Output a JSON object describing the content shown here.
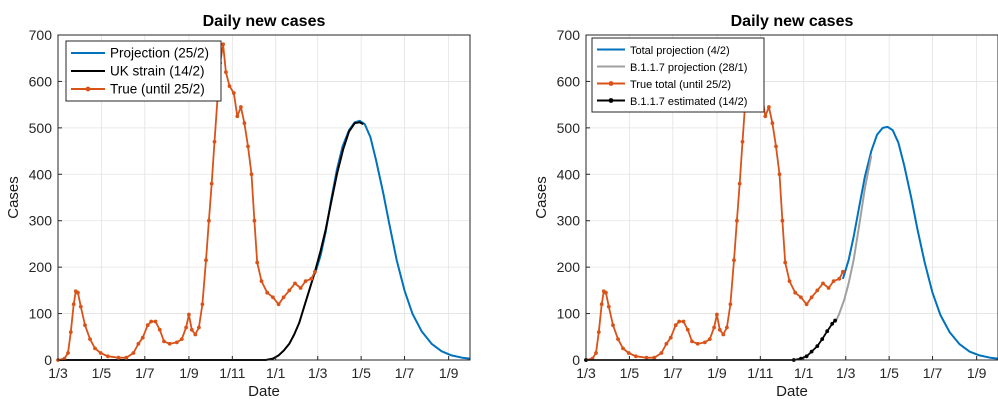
{
  "chart_data": [
    {
      "type": "line",
      "title": "Daily new cases",
      "xlabel": "Date",
      "ylabel": "Cases",
      "ylim": [
        0,
        700
      ],
      "yticks": [
        0,
        100,
        200,
        300,
        400,
        500,
        600,
        700
      ],
      "xlim": [
        "2020-03-01",
        "2021-10-01"
      ],
      "xtick_dates": [
        "2020-03-01",
        "2020-05-01",
        "2020-07-01",
        "2020-09-01",
        "2020-11-01",
        "2021-01-01",
        "2021-03-01",
        "2021-05-01",
        "2021-07-01",
        "2021-09-01"
      ],
      "xtick_labels": [
        "1/3",
        "1/5",
        "1/7",
        "1/9",
        "1/11",
        "1/1",
        "1/3",
        "1/5",
        "1/7",
        "1/9"
      ],
      "grid": true,
      "legend_position": "top-left",
      "series": [
        {
          "name": "Projection (25/2)",
          "color": "#0072BD",
          "markers": false,
          "points": [
            [
              "2021-02-25",
              185
            ],
            [
              "2021-03-05",
              225
            ],
            [
              "2021-03-12",
              275
            ],
            [
              "2021-03-20",
              345
            ],
            [
              "2021-03-28",
              410
            ],
            [
              "2021-04-05",
              460
            ],
            [
              "2021-04-14",
              495
            ],
            [
              "2021-04-22",
              512
            ],
            [
              "2021-04-29",
              515
            ],
            [
              "2021-05-06",
              508
            ],
            [
              "2021-05-14",
              480
            ],
            [
              "2021-05-22",
              430
            ],
            [
              "2021-06-01",
              360
            ],
            [
              "2021-06-10",
              290
            ],
            [
              "2021-06-20",
              215
            ],
            [
              "2021-07-01",
              150
            ],
            [
              "2021-07-12",
              100
            ],
            [
              "2021-07-25",
              62
            ],
            [
              "2021-08-08",
              35
            ],
            [
              "2021-08-22",
              19
            ],
            [
              "2021-09-05",
              10
            ],
            [
              "2021-09-20",
              5
            ],
            [
              "2021-10-01",
              3
            ]
          ]
        },
        {
          "name": "UK strain (14/2)",
          "color": "#000000",
          "markers": false,
          "points": [
            [
              "2020-03-01",
              0
            ],
            [
              "2020-12-18",
              0
            ],
            [
              "2020-12-28",
              3
            ],
            [
              "2021-01-05",
              10
            ],
            [
              "2021-01-12",
              20
            ],
            [
              "2021-01-20",
              35
            ],
            [
              "2021-01-27",
              55
            ],
            [
              "2021-02-03",
              80
            ],
            [
              "2021-02-10",
              115
            ],
            [
              "2021-02-17",
              150
            ],
            [
              "2021-02-25",
              190
            ],
            [
              "2021-03-05",
              235
            ],
            [
              "2021-03-12",
              280
            ],
            [
              "2021-03-20",
              340
            ],
            [
              "2021-03-28",
              400
            ],
            [
              "2021-04-06",
              455
            ],
            [
              "2021-04-14",
              492
            ],
            [
              "2021-04-22",
              510
            ],
            [
              "2021-04-29",
              512
            ],
            [
              "2021-05-04",
              508
            ]
          ]
        },
        {
          "name": "True (until 25/2)",
          "color": "#D95319",
          "markers": true,
          "points": [
            [
              "2020-03-01",
              0
            ],
            [
              "2020-03-10",
              3
            ],
            [
              "2020-03-15",
              15
            ],
            [
              "2020-03-19",
              60
            ],
            [
              "2020-03-23",
              120
            ],
            [
              "2020-03-26",
              148
            ],
            [
              "2020-03-29",
              145
            ],
            [
              "2020-04-02",
              115
            ],
            [
              "2020-04-08",
              75
            ],
            [
              "2020-04-15",
              45
            ],
            [
              "2020-04-22",
              25
            ],
            [
              "2020-04-30",
              15
            ],
            [
              "2020-05-10",
              8
            ],
            [
              "2020-05-25",
              5
            ],
            [
              "2020-06-05",
              5
            ],
            [
              "2020-06-15",
              15
            ],
            [
              "2020-06-22",
              35
            ],
            [
              "2020-06-28",
              48
            ],
            [
              "2020-07-05",
              75
            ],
            [
              "2020-07-10",
              83
            ],
            [
              "2020-07-16",
              83
            ],
            [
              "2020-07-22",
              65
            ],
            [
              "2020-07-28",
              40
            ],
            [
              "2020-08-05",
              35
            ],
            [
              "2020-08-15",
              38
            ],
            [
              "2020-08-22",
              45
            ],
            [
              "2020-08-28",
              70
            ],
            [
              "2020-09-01",
              98
            ],
            [
              "2020-09-05",
              65
            ],
            [
              "2020-09-10",
              55
            ],
            [
              "2020-09-15",
              70
            ],
            [
              "2020-09-20",
              120
            ],
            [
              "2020-09-25",
              215
            ],
            [
              "2020-09-29",
              300
            ],
            [
              "2020-10-03",
              380
            ],
            [
              "2020-10-07",
              470
            ],
            [
              "2020-10-11",
              560
            ],
            [
              "2020-10-15",
              640
            ],
            [
              "2020-10-19",
              680
            ],
            [
              "2020-10-23",
              620
            ],
            [
              "2020-10-28",
              590
            ],
            [
              "2020-11-03",
              575
            ],
            [
              "2020-11-08",
              525
            ],
            [
              "2020-11-13",
              545
            ],
            [
              "2020-11-18",
              510
            ],
            [
              "2020-11-23",
              460
            ],
            [
              "2020-11-28",
              400
            ],
            [
              "2020-12-02",
              300
            ],
            [
              "2020-12-06",
              210
            ],
            [
              "2020-12-12",
              170
            ],
            [
              "2020-12-20",
              145
            ],
            [
              "2020-12-28",
              135
            ],
            [
              "2021-01-05",
              120
            ],
            [
              "2021-01-12",
              135
            ],
            [
              "2021-01-20",
              150
            ],
            [
              "2021-01-28",
              165
            ],
            [
              "2021-02-05",
              155
            ],
            [
              "2021-02-12",
              170
            ],
            [
              "2021-02-20",
              175
            ],
            [
              "2021-02-25",
              190
            ]
          ]
        }
      ]
    },
    {
      "type": "line",
      "title": "Daily new cases",
      "xlabel": "Date",
      "ylabel": "Cases",
      "ylim": [
        0,
        700
      ],
      "yticks": [
        0,
        100,
        200,
        300,
        400,
        500,
        600,
        700
      ],
      "xlim": [
        "2020-03-01",
        "2021-10-01"
      ],
      "xtick_dates": [
        "2020-03-01",
        "2020-05-01",
        "2020-07-01",
        "2020-09-01",
        "2020-11-01",
        "2021-01-01",
        "2021-03-01",
        "2021-05-01",
        "2021-07-01",
        "2021-09-01"
      ],
      "xtick_labels": [
        "1/3",
        "1/5",
        "1/7",
        "1/9",
        "1/11",
        "1/1",
        "1/3",
        "1/5",
        "1/7",
        "1/9"
      ],
      "grid": true,
      "legend_position": "top-left",
      "series": [
        {
          "name": "Total projection (4/2)",
          "color": "#0072BD",
          "markers": false,
          "points": [
            [
              "2021-02-25",
              175
            ],
            [
              "2021-03-05",
              215
            ],
            [
              "2021-03-12",
              265
            ],
            [
              "2021-03-20",
              330
            ],
            [
              "2021-03-28",
              395
            ],
            [
              "2021-04-06",
              450
            ],
            [
              "2021-04-14",
              485
            ],
            [
              "2021-04-22",
              500
            ],
            [
              "2021-04-29",
              502
            ],
            [
              "2021-05-06",
              495
            ],
            [
              "2021-05-14",
              468
            ],
            [
              "2021-05-22",
              420
            ],
            [
              "2021-06-01",
              350
            ],
            [
              "2021-06-10",
              280
            ],
            [
              "2021-06-20",
              210
            ],
            [
              "2021-07-01",
              145
            ],
            [
              "2021-07-12",
              97
            ],
            [
              "2021-07-25",
              60
            ],
            [
              "2021-08-08",
              34
            ],
            [
              "2021-08-22",
              18
            ],
            [
              "2021-09-05",
              10
            ],
            [
              "2021-09-20",
              5
            ],
            [
              "2021-10-01",
              3
            ]
          ]
        },
        {
          "name": "B.1.1.7 projection (28/1)",
          "color": "#A0A0A0",
          "markers": false,
          "points": [
            [
              "2021-02-14",
              80
            ],
            [
              "2021-02-20",
              100
            ],
            [
              "2021-02-27",
              130
            ],
            [
              "2021-03-05",
              165
            ],
            [
              "2021-03-12",
              215
            ],
            [
              "2021-03-20",
              290
            ],
            [
              "2021-03-28",
              370
            ],
            [
              "2021-04-06",
              440
            ]
          ]
        },
        {
          "name": "True total (until 25/2)",
          "color": "#D95319",
          "markers": true,
          "points": [
            [
              "2020-03-01",
              0
            ],
            [
              "2020-03-10",
              3
            ],
            [
              "2020-03-15",
              15
            ],
            [
              "2020-03-19",
              60
            ],
            [
              "2020-03-23",
              120
            ],
            [
              "2020-03-26",
              148
            ],
            [
              "2020-03-29",
              145
            ],
            [
              "2020-04-02",
              115
            ],
            [
              "2020-04-08",
              75
            ],
            [
              "2020-04-15",
              45
            ],
            [
              "2020-04-22",
              25
            ],
            [
              "2020-04-30",
              15
            ],
            [
              "2020-05-10",
              8
            ],
            [
              "2020-05-25",
              5
            ],
            [
              "2020-06-05",
              5
            ],
            [
              "2020-06-15",
              15
            ],
            [
              "2020-06-22",
              35
            ],
            [
              "2020-06-28",
              48
            ],
            [
              "2020-07-05",
              75
            ],
            [
              "2020-07-10",
              83
            ],
            [
              "2020-07-16",
              83
            ],
            [
              "2020-07-22",
              65
            ],
            [
              "2020-07-28",
              40
            ],
            [
              "2020-08-05",
              35
            ],
            [
              "2020-08-15",
              38
            ],
            [
              "2020-08-22",
              45
            ],
            [
              "2020-08-28",
              70
            ],
            [
              "2020-09-01",
              98
            ],
            [
              "2020-09-05",
              65
            ],
            [
              "2020-09-10",
              55
            ],
            [
              "2020-09-15",
              70
            ],
            [
              "2020-09-20",
              120
            ],
            [
              "2020-09-25",
              215
            ],
            [
              "2020-09-29",
              300
            ],
            [
              "2020-10-03",
              380
            ],
            [
              "2020-10-07",
              470
            ],
            [
              "2020-10-11",
              560
            ],
            [
              "2020-10-15",
              640
            ],
            [
              "2020-10-19",
              680
            ],
            [
              "2020-10-23",
              620
            ],
            [
              "2020-10-28",
              590
            ],
            [
              "2020-11-03",
              575
            ],
            [
              "2020-11-08",
              525
            ],
            [
              "2020-11-13",
              545
            ],
            [
              "2020-11-18",
              510
            ],
            [
              "2020-11-23",
              460
            ],
            [
              "2020-11-28",
              400
            ],
            [
              "2020-12-02",
              300
            ],
            [
              "2020-12-06",
              210
            ],
            [
              "2020-12-12",
              170
            ],
            [
              "2020-12-20",
              145
            ],
            [
              "2020-12-28",
              135
            ],
            [
              "2021-01-05",
              120
            ],
            [
              "2021-01-12",
              135
            ],
            [
              "2021-01-20",
              150
            ],
            [
              "2021-01-28",
              165
            ],
            [
              "2021-02-05",
              155
            ],
            [
              "2021-02-12",
              170
            ],
            [
              "2021-02-20",
              175
            ],
            [
              "2021-02-25",
              190
            ]
          ]
        },
        {
          "name": "B.1.1.7 estimated (14/2)",
          "color": "#000000",
          "markers": true,
          "points": [
            [
              "2020-03-01",
              0
            ],
            [
              "2020-12-18",
              0
            ],
            [
              "2020-12-28",
              3
            ],
            [
              "2021-01-05",
              8
            ],
            [
              "2021-01-12",
              18
            ],
            [
              "2021-01-20",
              30
            ],
            [
              "2021-01-27",
              45
            ],
            [
              "2021-02-03",
              62
            ],
            [
              "2021-02-10",
              78
            ],
            [
              "2021-02-14",
              85
            ]
          ]
        }
      ]
    }
  ]
}
